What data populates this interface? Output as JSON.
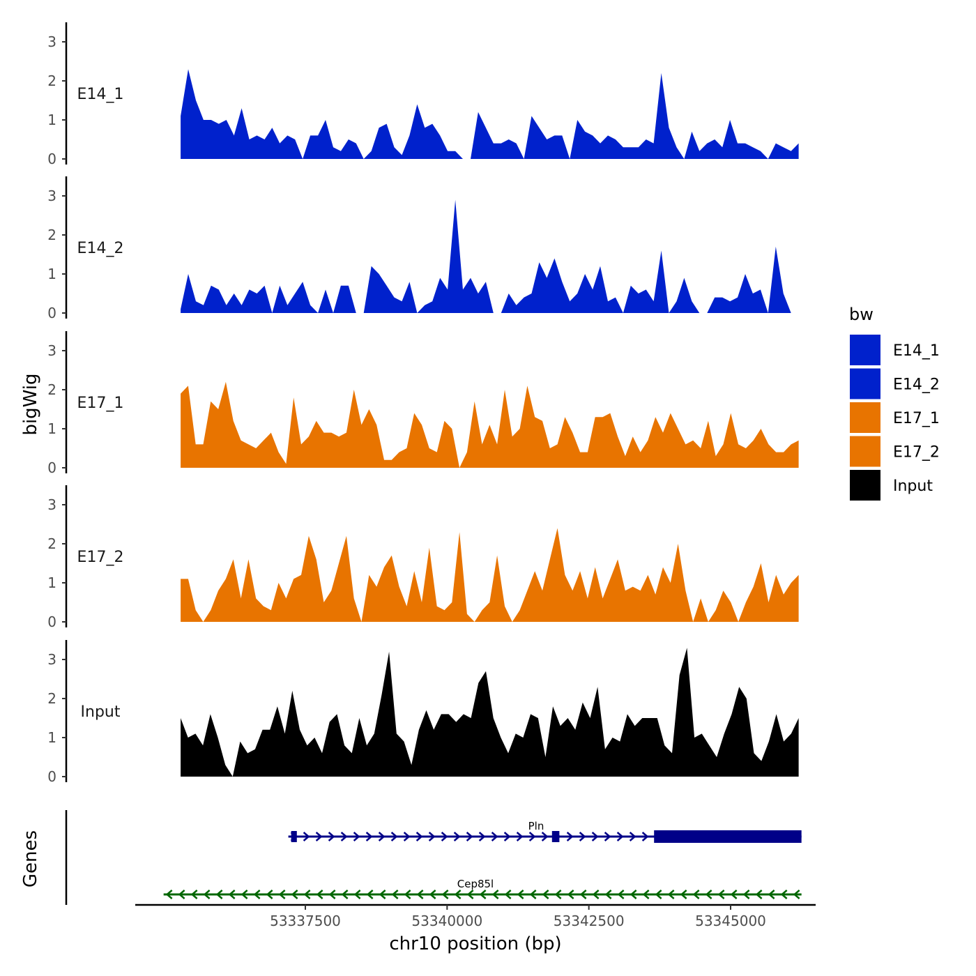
{
  "chart_data": {
    "type": "area",
    "title": "",
    "y_title": "bigWig",
    "genes_title": "Genes",
    "xlabel": "chr10 position (bp)",
    "x_ticks": [
      53337500,
      53340000,
      53342500,
      53345000
    ],
    "x_tick_labels": [
      "53337500",
      "53340000",
      "53342500",
      "53345000"
    ],
    "xlim": [
      53334500,
      53346500
    ],
    "ylim": [
      0,
      3.5
    ],
    "y_ticks": [
      0,
      1,
      2,
      3
    ],
    "y_tick_labels": [
      "0",
      "1",
      "2",
      "3"
    ],
    "data_x_start": 53335300,
    "data_x_end": 53346200,
    "legend": {
      "title": "bw",
      "position": "right",
      "entries": [
        {
          "label": "E14_1",
          "color": "#0021CC"
        },
        {
          "label": "E14_2",
          "color": "#0021CC"
        },
        {
          "label": "E17_1",
          "color": "#E87400"
        },
        {
          "label": "E17_2",
          "color": "#E87400"
        },
        {
          "label": "Input",
          "color": "#000000"
        }
      ]
    },
    "series": [
      {
        "name": "E14_1",
        "color": "#0021CC",
        "values": [
          1.1,
          2.3,
          1.5,
          1.0,
          1.0,
          0.9,
          1.0,
          0.6,
          1.3,
          0.5,
          0.6,
          0.5,
          0.8,
          0.4,
          0.6,
          0.5,
          0.0,
          0.6,
          0.6,
          1.0,
          0.3,
          0.2,
          0.5,
          0.4,
          0.0,
          0.2,
          0.8,
          0.9,
          0.3,
          0.1,
          0.6,
          1.4,
          0.8,
          0.9,
          0.6,
          0.2,
          0.2,
          0.0,
          0.0,
          1.2,
          0.8,
          0.4,
          0.4,
          0.5,
          0.4,
          0.0,
          1.1,
          0.8,
          0.5,
          0.6,
          0.6,
          0.0,
          1.0,
          0.7,
          0.6,
          0.4,
          0.6,
          0.5,
          0.3,
          0.3,
          0.3,
          0.5,
          0.4,
          2.2,
          0.8,
          0.3,
          0.0,
          0.7,
          0.2,
          0.4,
          0.5,
          0.3,
          1.0,
          0.4,
          0.4,
          0.3,
          0.2,
          0.0,
          0.4,
          0.3,
          0.2,
          0.4
        ]
      },
      {
        "name": "E14_2",
        "color": "#0021CC",
        "values": [
          0.1,
          1.0,
          0.3,
          0.2,
          0.7,
          0.6,
          0.2,
          0.5,
          0.2,
          0.6,
          0.5,
          0.7,
          0.0,
          0.7,
          0.2,
          0.5,
          0.8,
          0.2,
          0.0,
          0.6,
          0.0,
          0.7,
          0.7,
          0.0,
          0.0,
          1.2,
          1.0,
          0.7,
          0.4,
          0.3,
          0.8,
          0.0,
          0.2,
          0.3,
          0.9,
          0.6,
          2.9,
          0.6,
          0.9,
          0.5,
          0.8,
          0.0,
          0.0,
          0.5,
          0.2,
          0.4,
          0.5,
          1.3,
          0.9,
          1.4,
          0.8,
          0.3,
          0.5,
          1.0,
          0.6,
          1.2,
          0.3,
          0.4,
          0.0,
          0.7,
          0.5,
          0.6,
          0.3,
          1.6,
          0.0,
          0.3,
          0.9,
          0.3,
          0.0,
          0.0,
          0.4,
          0.4,
          0.3,
          0.4,
          1.0,
          0.5,
          0.6,
          0.0,
          1.7,
          0.5,
          0.0,
          0.0
        ]
      },
      {
        "name": "E17_1",
        "color": "#E87400",
        "values": [
          1.9,
          2.1,
          0.6,
          0.6,
          1.7,
          1.5,
          2.2,
          1.2,
          0.7,
          0.6,
          0.5,
          0.7,
          0.9,
          0.4,
          0.1,
          1.8,
          0.6,
          0.8,
          1.2,
          0.9,
          0.9,
          0.8,
          0.9,
          2.0,
          1.1,
          1.5,
          1.1,
          0.2,
          0.2,
          0.4,
          0.5,
          1.4,
          1.1,
          0.5,
          0.4,
          1.2,
          1.0,
          0.0,
          0.4,
          1.7,
          0.6,
          1.1,
          0.6,
          2.0,
          0.8,
          1.0,
          2.1,
          1.3,
          1.2,
          0.5,
          0.6,
          1.3,
          0.9,
          0.4,
          0.4,
          1.3,
          1.3,
          1.4,
          0.8,
          0.3,
          0.8,
          0.4,
          0.7,
          1.3,
          0.9,
          1.4,
          1.0,
          0.6,
          0.7,
          0.5,
          1.2,
          0.3,
          0.6,
          1.4,
          0.6,
          0.5,
          0.7,
          1.0,
          0.6,
          0.4,
          0.4,
          0.6,
          0.7
        ]
      },
      {
        "name": "E17_2",
        "color": "#E87400",
        "values": [
          1.1,
          1.1,
          0.3,
          0.0,
          0.3,
          0.8,
          1.1,
          1.6,
          0.6,
          1.6,
          0.6,
          0.4,
          0.3,
          1.0,
          0.6,
          1.1,
          1.2,
          2.2,
          1.6,
          0.5,
          0.8,
          1.5,
          2.2,
          0.6,
          0.0,
          1.2,
          0.9,
          1.4,
          1.7,
          0.9,
          0.4,
          1.3,
          0.5,
          1.9,
          0.4,
          0.3,
          0.5,
          2.3,
          0.2,
          0.0,
          0.3,
          0.5,
          1.7,
          0.4,
          0.0,
          0.3,
          0.8,
          1.3,
          0.8,
          1.6,
          2.4,
          1.2,
          0.8,
          1.3,
          0.6,
          1.4,
          0.6,
          1.1,
          1.6,
          0.8,
          0.9,
          0.8,
          1.2,
          0.7,
          1.4,
          1.0,
          2.0,
          0.8,
          0.0,
          0.6,
          0.0,
          0.3,
          0.8,
          0.5,
          0.0,
          0.5,
          0.9,
          1.5,
          0.5,
          1.2,
          0.7,
          1.0,
          1.2
        ]
      },
      {
        "name": "Input",
        "color": "#000000",
        "values": [
          1.5,
          1.0,
          1.1,
          0.8,
          1.6,
          1.0,
          0.3,
          0.0,
          0.9,
          0.6,
          0.7,
          1.2,
          1.2,
          1.8,
          1.1,
          2.2,
          1.2,
          0.8,
          1.0,
          0.6,
          1.4,
          1.6,
          0.8,
          0.6,
          1.5,
          0.8,
          1.1,
          2.1,
          3.2,
          1.1,
          0.9,
          0.3,
          1.2,
          1.7,
          1.2,
          1.6,
          1.6,
          1.4,
          1.6,
          1.5,
          2.4,
          2.7,
          1.5,
          1.0,
          0.6,
          1.1,
          1.0,
          1.6,
          1.5,
          0.5,
          1.8,
          1.3,
          1.5,
          1.2,
          1.9,
          1.5,
          2.3,
          0.7,
          1.0,
          0.9,
          1.6,
          1.3,
          1.5,
          1.5,
          1.5,
          0.8,
          0.6,
          2.6,
          3.3,
          1.0,
          1.1,
          0.8,
          0.5,
          1.1,
          1.6,
          2.3,
          2.0,
          0.6,
          0.4,
          0.9,
          1.6,
          0.9,
          1.1,
          1.5
        ]
      }
    ],
    "genes": [
      {
        "name": "Pln",
        "color": "#000088",
        "strand": "+",
        "start": 53337200,
        "end": 53346250,
        "exons": [
          {
            "start": 53337250,
            "end": 53337350,
            "type": "small"
          },
          {
            "start": 53341850,
            "end": 53341980,
            "type": "small"
          },
          {
            "start": 53343650,
            "end": 53346250,
            "type": "utr"
          }
        ]
      },
      {
        "name": "Cep85l",
        "color": "#006600",
        "strand": "-",
        "start": 53335000,
        "end": 53346250,
        "exons": []
      }
    ]
  }
}
